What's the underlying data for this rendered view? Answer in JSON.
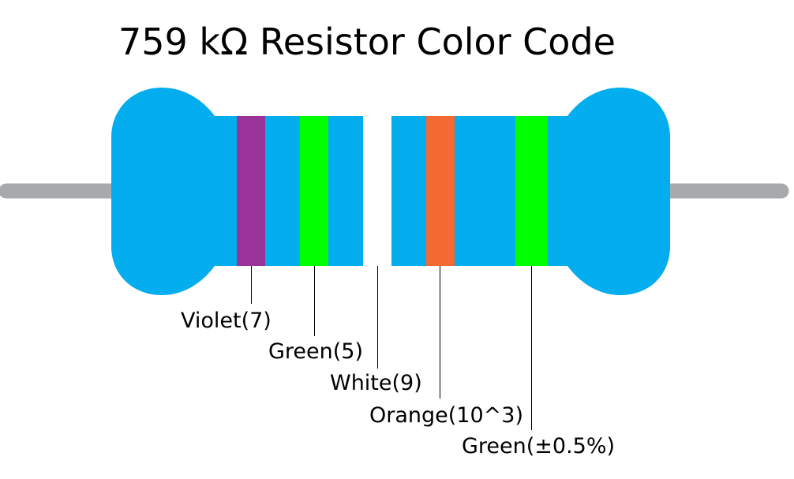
{
  "title": "759 kΩ Resistor Color Code",
  "colors": {
    "body": "#03adee",
    "lead": "#a7a9ac",
    "leader_line": "#000000",
    "background": "#ffffff"
  },
  "bands": [
    {
      "color_name": "violet",
      "hex": "#993299",
      "label": "Violet(7)"
    },
    {
      "color_name": "green",
      "hex": "#00ff00",
      "label": "Green(5)"
    },
    {
      "color_name": "white",
      "hex": "#ffffff",
      "label": "White(9)"
    },
    {
      "color_name": "orange",
      "hex": "#f26a32",
      "label": "Orange(10^3)"
    },
    {
      "color_name": "green",
      "hex": "#00ff00",
      "label": "Green(±0.5%)"
    }
  ]
}
